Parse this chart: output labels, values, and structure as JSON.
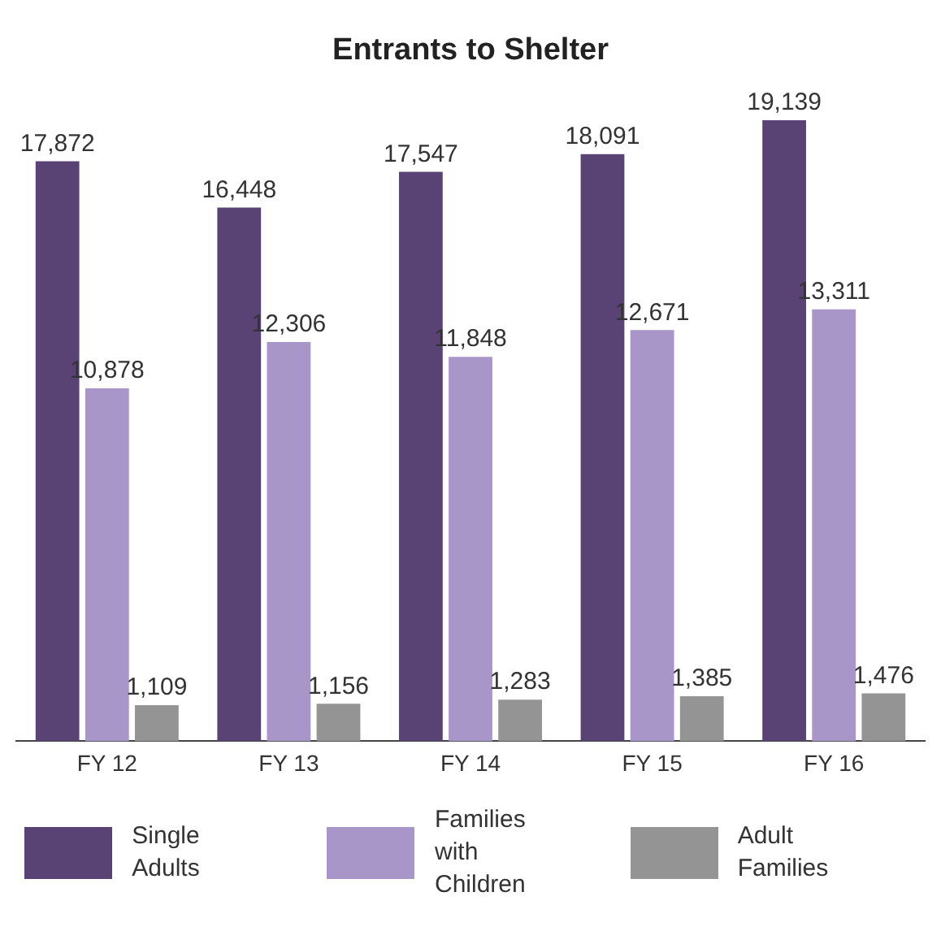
{
  "chart_data": {
    "type": "bar",
    "title": "Entrants to Shelter",
    "categories": [
      "FY 12",
      "FY 13",
      "FY 14",
      "FY 15",
      "FY 16"
    ],
    "series": [
      {
        "name": "Single Adults",
        "color": "#594375",
        "values": [
          17872,
          16448,
          17547,
          18091,
          19139
        ],
        "value_labels": [
          "17,872",
          "16,448",
          "17,547",
          "18,091",
          "19,139"
        ]
      },
      {
        "name": "Families with Children",
        "color": "#a896c8",
        "values": [
          10878,
          12306,
          11848,
          12671,
          13311
        ],
        "value_labels": [
          "10,878",
          "12,306",
          "11,848",
          "12,671",
          "13,311"
        ]
      },
      {
        "name": "Adult Families",
        "color": "#949494",
        "values": [
          1109,
          1156,
          1283,
          1385,
          1476
        ],
        "value_labels": [
          "1,109",
          "1,156",
          "1,283",
          "1,385",
          "1,476"
        ]
      }
    ],
    "grid": false,
    "legend": "bottom",
    "tick_labels": "x"
  }
}
